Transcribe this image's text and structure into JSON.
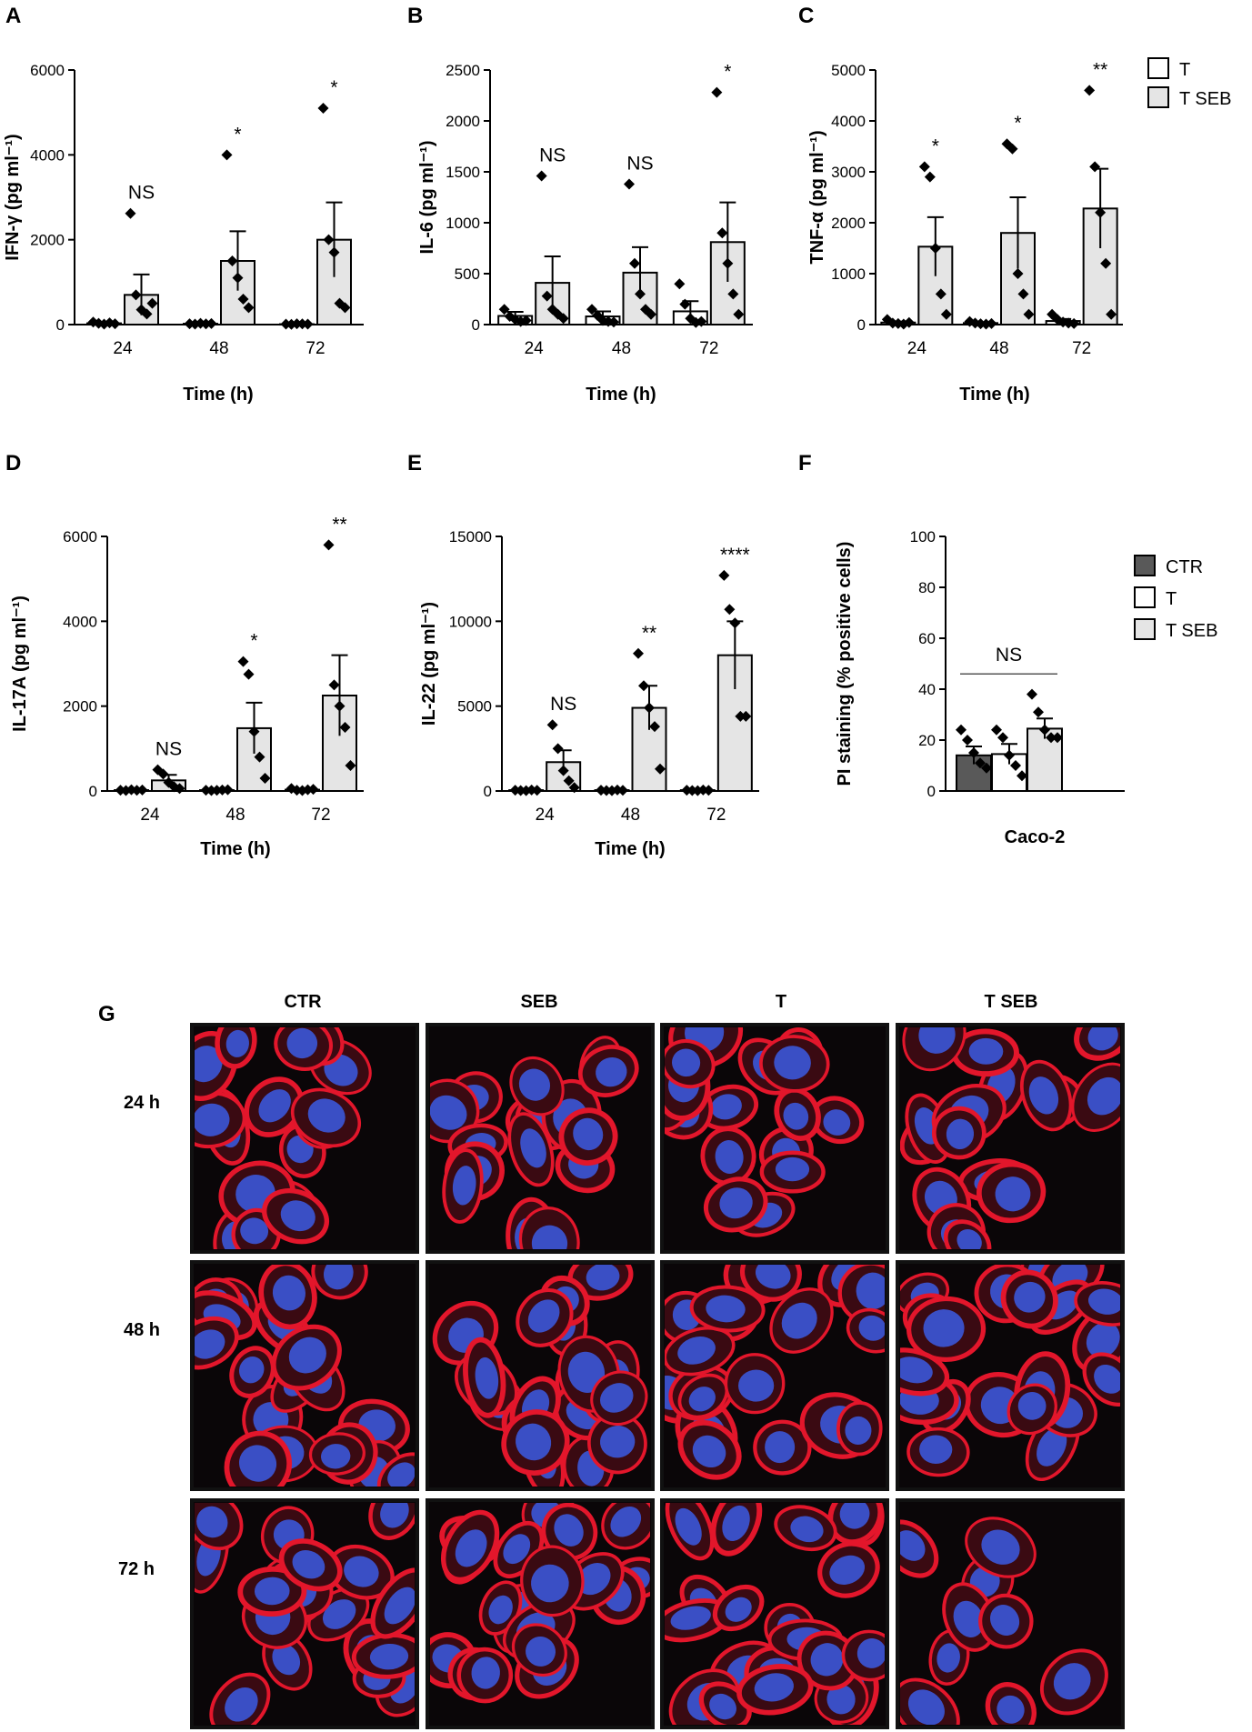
{
  "chart_data": [
    {
      "panel": "A",
      "type": "bar",
      "ylabel": "IFN-γ (pg ml⁻¹)",
      "xlabel": "Time (h)",
      "categories": [
        "24",
        "48",
        "72"
      ],
      "ylim": [
        0,
        6000
      ],
      "yticks": [
        0,
        2000,
        4000,
        6000
      ],
      "series": [
        {
          "name": "T",
          "values": [
            30,
            20,
            10
          ],
          "sem": [
            15,
            10,
            5
          ],
          "points": [
            [
              60,
              30,
              10,
              40,
              20
            ],
            [
              20,
              10,
              30,
              15,
              25
            ],
            [
              10,
              5,
              20,
              15,
              10
            ]
          ]
        },
        {
          "name": "T SEB",
          "values": [
            700,
            1500,
            2000
          ],
          "sem": [
            480,
            700,
            880
          ],
          "points": [
            [
              2620,
              700,
              350,
              250,
              500
            ],
            [
              4000,
              1500,
              1100,
              600,
              400
            ],
            [
              5100,
              2000,
              1700,
              500,
              400
            ]
          ]
        }
      ],
      "annotations": [
        "NS",
        "*",
        "*"
      ]
    },
    {
      "panel": "B",
      "type": "bar",
      "ylabel": "IL-6 (pg ml⁻¹)",
      "xlabel": "Time (h)",
      "categories": [
        "24",
        "48",
        "72"
      ],
      "ylim": [
        0,
        2500
      ],
      "yticks": [
        0,
        500,
        1000,
        1500,
        2000,
        2500
      ],
      "series": [
        {
          "name": "T",
          "values": [
            85,
            80,
            130
          ],
          "sem": [
            40,
            50,
            100
          ],
          "points": [
            [
              150,
              80,
              50,
              30,
              40
            ],
            [
              150,
              90,
              40,
              30,
              25
            ],
            [
              400,
              200,
              60,
              20,
              30
            ]
          ]
        },
        {
          "name": "T SEB",
          "values": [
            410,
            510,
            810
          ],
          "sem": [
            260,
            250,
            390
          ],
          "points": [
            [
              1460,
              280,
              150,
              100,
              60
            ],
            [
              1380,
              600,
              300,
              150,
              100
            ],
            [
              2280,
              900,
              600,
              300,
              100
            ]
          ]
        }
      ],
      "annotations": [
        "NS",
        "NS",
        "*"
      ]
    },
    {
      "panel": "C",
      "type": "bar",
      "ylabel": "TNF-α (pg ml⁻¹)",
      "xlabel": "Time (h)",
      "categories": [
        "24",
        "48",
        "72"
      ],
      "ylim": [
        0,
        5000
      ],
      "yticks": [
        0,
        1000,
        2000,
        3000,
        4000,
        5000
      ],
      "series": [
        {
          "name": "T",
          "values": [
            40,
            30,
            70
          ],
          "sem": [
            20,
            15,
            40
          ],
          "points": [
            [
              100,
              30,
              20,
              10,
              40
            ],
            [
              60,
              30,
              15,
              10,
              20
            ],
            [
              200,
              100,
              50,
              30,
              20
            ]
          ]
        },
        {
          "name": "T SEB",
          "values": [
            1530,
            1800,
            2280
          ],
          "sem": [
            580,
            700,
            780
          ],
          "points": [
            [
              3100,
              2900,
              1500,
              600,
              200
            ],
            [
              3550,
              3450,
              1000,
              600,
              200
            ],
            [
              4600,
              3100,
              2200,
              1200,
              200
            ]
          ]
        }
      ],
      "annotations": [
        "*",
        "*",
        "**"
      ]
    },
    {
      "panel": "D",
      "type": "bar",
      "ylabel": "IL-17A (pg ml⁻¹)",
      "xlabel": "Time (h)",
      "categories": [
        "24",
        "48",
        "72"
      ],
      "ylim": [
        0,
        6000
      ],
      "yticks": [
        0,
        2000,
        4000,
        6000
      ],
      "series": [
        {
          "name": "T",
          "values": [
            20,
            20,
            30
          ],
          "sem": [
            10,
            10,
            15
          ],
          "points": [
            [
              20,
              10,
              30,
              15,
              25
            ],
            [
              20,
              10,
              15,
              25,
              30
            ],
            [
              60,
              20,
              10,
              30,
              40
            ]
          ]
        },
        {
          "name": "T SEB",
          "values": [
            250,
            1480,
            2250
          ],
          "sem": [
            130,
            600,
            950
          ],
          "points": [
            [
              500,
              400,
              200,
              100,
              60
            ],
            [
              3050,
              2750,
              1400,
              800,
              300
            ],
            [
              5800,
              2500,
              2000,
              1500,
              600
            ]
          ]
        }
      ],
      "annotations": [
        "NS",
        "*",
        "**"
      ]
    },
    {
      "panel": "E",
      "type": "bar",
      "ylabel": "IL-22 (pg ml⁻¹)",
      "xlabel": "Time (h)",
      "categories": [
        "24",
        "48",
        "72"
      ],
      "ylim": [
        0,
        15000
      ],
      "yticks": [
        0,
        5000,
        10000,
        15000
      ],
      "series": [
        {
          "name": "T",
          "values": [
            50,
            50,
            50
          ],
          "sem": [
            20,
            20,
            20
          ],
          "points": [
            [
              50,
              30,
              20,
              60,
              40
            ],
            [
              50,
              30,
              20,
              60,
              40
            ],
            [
              50,
              30,
              20,
              60,
              40
            ]
          ]
        },
        {
          "name": "T SEB",
          "values": [
            1700,
            4900,
            8000
          ],
          "sem": [
            700,
            1300,
            2000
          ],
          "points": [
            [
              3900,
              2500,
              1200,
              600,
              200
            ],
            [
              8100,
              6200,
              4900,
              3800,
              1300
            ],
            [
              12700,
              10700,
              9900,
              4400,
              4400
            ]
          ]
        }
      ],
      "annotations": [
        "NS",
        "**",
        "****"
      ]
    },
    {
      "panel": "F",
      "type": "bar",
      "ylabel": "PI staining (% positive cells)",
      "xlabel": "Caco-2",
      "categories": [
        "CTR",
        "T",
        "T SEB"
      ],
      "ylim": [
        0,
        100
      ],
      "yticks": [
        0,
        20,
        40,
        60,
        80,
        100
      ],
      "values": [
        14,
        14.5,
        24.5
      ],
      "sem": [
        3.5,
        4,
        4
      ],
      "points": [
        [
          24,
          20,
          15,
          11,
          9
        ],
        [
          24,
          21,
          14,
          10,
          6
        ],
        [
          38,
          31,
          24,
          21,
          21
        ]
      ],
      "annotations": [
        "NS"
      ]
    }
  ],
  "panel_labels": [
    "A",
    "B",
    "C",
    "D",
    "E",
    "F",
    "G"
  ],
  "legend_top": [
    "T",
    "T SEB"
  ],
  "legend_f": [
    "CTR",
    "T",
    "T SEB"
  ],
  "colors": {
    "ctr": "#595959",
    "t": "#ffffff",
    "tseb": "#e5e5e5",
    "actin": "#e3162b",
    "nuclei": "#3b56d9"
  },
  "micrographs": {
    "columns": [
      "CTR",
      "SEB",
      "T",
      "T SEB"
    ],
    "rows": [
      "24 h",
      "48 h",
      "72 h"
    ]
  }
}
